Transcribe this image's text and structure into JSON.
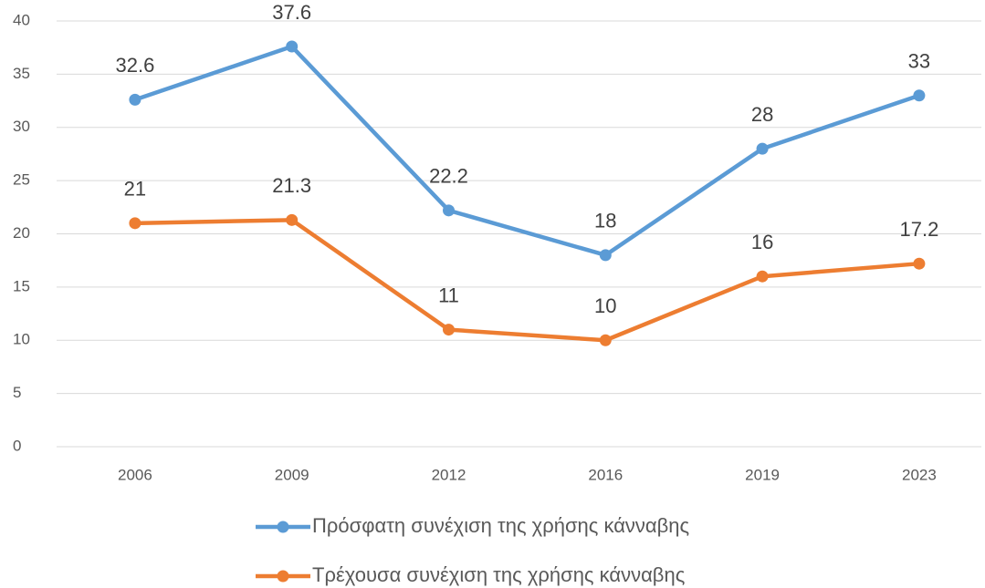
{
  "chart_data": {
    "type": "line",
    "categories": [
      "2006",
      "2009",
      "2012",
      "2016",
      "2019",
      "2023"
    ],
    "series": [
      {
        "name": "Πρόσφατη συνέχιση της χρήσης κάνναβης",
        "color": "#5b9bd5",
        "values": [
          32.6,
          37.6,
          22.2,
          18,
          28,
          33
        ]
      },
      {
        "name": "Τρέχουσα συνέχιση της χρήσης κάνναβης",
        "color": "#ed7d31",
        "values": [
          21,
          21.3,
          11,
          10,
          16,
          17.2
        ]
      }
    ],
    "ylim": [
      0,
      40
    ],
    "yticks": [
      0,
      5,
      10,
      15,
      20,
      25,
      30,
      35,
      40
    ],
    "grid": true,
    "legend": "bottom"
  }
}
